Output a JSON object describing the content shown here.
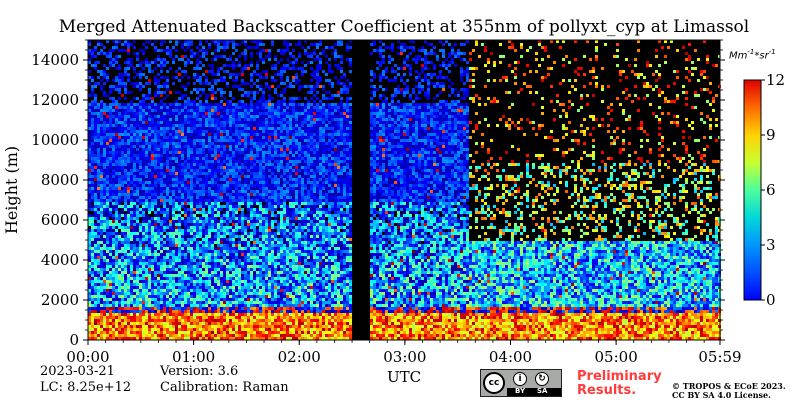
{
  "figure": {
    "title": "Merged Attenuated Backscatter Coefficient at 355nm of pollyxt_cyp at Limassol",
    "date": "2023-03-21",
    "lc": "LC: 8.25e+12",
    "version": "Version: 3.6",
    "calibration": "Calibration: Raman",
    "prelim_line1": "Preliminary",
    "prelim_line2": "Results.",
    "copyright_line1": "© TROPOS & ECoE 2023.",
    "copyright_line2": "CC BY SA 4.0 License.",
    "license_badge": {
      "cc": "cc",
      "by": "BY",
      "sa": "SA"
    }
  },
  "chart_data": {
    "type": "heatmap",
    "title": "Merged Attenuated Backscatter Coefficient at 355nm of pollyxt_cyp at Limassol",
    "xlabel": "UTC",
    "ylabel": "Height (m)",
    "x_range": [
      "00:00",
      "05:59"
    ],
    "x_ticks": [
      "00:00",
      "01:00",
      "02:00",
      "03:00",
      "04:00",
      "05:00",
      "05:59"
    ],
    "x_tick_minutes": [
      0,
      60,
      120,
      180,
      240,
      300,
      359
    ],
    "ylim": [
      0,
      15000
    ],
    "y_ticks": [
      0,
      2000,
      4000,
      6000,
      8000,
      10000,
      12000,
      14000
    ],
    "colorbar": {
      "label": "Mm^-1*sr^-1",
      "range": [
        0,
        12
      ],
      "ticks": [
        0,
        3,
        6,
        9,
        12
      ],
      "colormap": "jet"
    },
    "data_gap_utc": [
      "02:30",
      "02:40"
    ],
    "profile_description_minutes": {
      "segment1_end": 150,
      "segment2_start": 160,
      "regime_change": 216
    }
  }
}
